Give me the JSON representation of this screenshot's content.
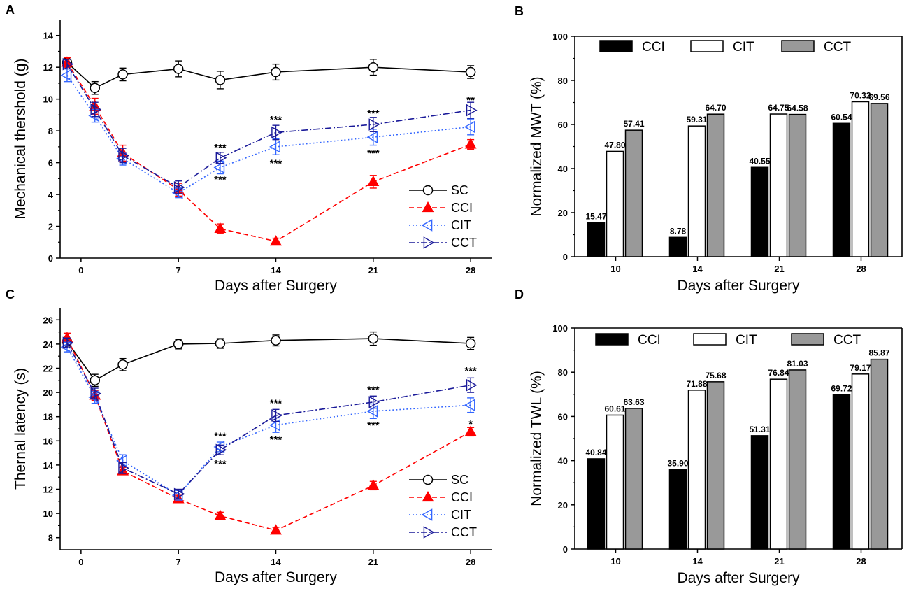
{
  "colors": {
    "SC": "#000000",
    "CCI": "#ff0000",
    "CIT": "#3366ff",
    "CCT": "#1a1a99",
    "bar_CCI": "#000000",
    "bar_CIT": "#ffffff",
    "bar_CCT": "#999999"
  },
  "chart_data": [
    {
      "panel": "A",
      "type": "line",
      "title": "",
      "xlabel": "Days after Surgery",
      "ylabel": "Mechanical thershold (g)",
      "xticks": [
        0,
        7,
        14,
        21,
        28
      ],
      "yticks": [
        0,
        2,
        4,
        6,
        8,
        10,
        12,
        14
      ],
      "xlim": [
        -1.5,
        29.5
      ],
      "ylim": [
        0,
        15
      ],
      "legend": "bottom-right",
      "x": [
        -1,
        1,
        3,
        7,
        10,
        14,
        21,
        28
      ],
      "series": [
        {
          "name": "SC",
          "style": "solid",
          "marker": "circle",
          "values": [
            12.3,
            10.7,
            11.55,
            11.9,
            11.2,
            11.7,
            12.0,
            11.7
          ],
          "err": [
            0.2,
            0.4,
            0.4,
            0.5,
            0.55,
            0.5,
            0.5,
            0.4
          ]
        },
        {
          "name": "CCI",
          "style": "dashed",
          "marker": "triangle-up",
          "values": [
            12.3,
            9.55,
            6.6,
            4.3,
            1.85,
            1.05,
            4.8,
            7.15
          ],
          "err": [
            0.3,
            0.5,
            0.5,
            0.4,
            0.3,
            0.2,
            0.4,
            0.3
          ]
        },
        {
          "name": "CIT",
          "style": "dotted",
          "marker": "triangle-left",
          "values": [
            11.5,
            8.95,
            6.25,
            4.1,
            5.7,
            7.0,
            7.6,
            8.25
          ],
          "err": [
            0.4,
            0.4,
            0.4,
            0.3,
            0.4,
            0.5,
            0.5,
            0.5
          ]
        },
        {
          "name": "CCT",
          "style": "dashdot",
          "marker": "triangle-right",
          "values": [
            12.2,
            9.35,
            6.45,
            4.45,
            6.3,
            7.9,
            8.4,
            9.3
          ],
          "err": [
            0.3,
            0.45,
            0.45,
            0.4,
            0.35,
            0.45,
            0.45,
            0.5
          ]
        }
      ],
      "annotations": [
        {
          "x": 10,
          "y": 6.95,
          "text": "***"
        },
        {
          "x": 10,
          "y": 4.95,
          "text": "***"
        },
        {
          "x": 14,
          "y": 8.7,
          "text": "***"
        },
        {
          "x": 14,
          "y": 5.95,
          "text": "***"
        },
        {
          "x": 21,
          "y": 9.1,
          "text": "***"
        },
        {
          "x": 21,
          "y": 6.6,
          "text": "***"
        },
        {
          "x": 28,
          "y": 9.95,
          "text": "**"
        }
      ]
    },
    {
      "panel": "B",
      "type": "bar",
      "title": "",
      "xlabel": "Days after Surgery",
      "ylabel": "Normalized MWT (%)",
      "categories": [
        "10",
        "14",
        "21",
        "28"
      ],
      "yticks": [
        0,
        20,
        40,
        60,
        80,
        100
      ],
      "ylim": [
        0,
        100
      ],
      "legend": "top",
      "series": [
        {
          "name": "CCI",
          "values": [
            15.47,
            8.78,
            40.55,
            60.54
          ],
          "labels": [
            "15.47",
            "8.78",
            "40.55",
            "60.54"
          ]
        },
        {
          "name": "CIT",
          "values": [
            47.8,
            59.31,
            64.75,
            70.32
          ],
          "labels": [
            "47.80",
            "59.31",
            "64.75",
            "70.32"
          ]
        },
        {
          "name": "CCT",
          "values": [
            57.41,
            64.7,
            64.58,
            69.56
          ],
          "labels": [
            "57.41",
            "64.70",
            "64.58",
            "69.56"
          ]
        }
      ]
    },
    {
      "panel": "C",
      "type": "line",
      "title": "",
      "xlabel": "Days after Surgery",
      "ylabel": "Thernal latency (s)",
      "xticks": [
        0,
        7,
        14,
        21,
        28
      ],
      "yticks": [
        8,
        10,
        12,
        14,
        16,
        18,
        20,
        22,
        24,
        26
      ],
      "xlim": [
        -1.5,
        29.5
      ],
      "ylim": [
        7,
        27
      ],
      "legend": "bottom-right",
      "x": [
        -1,
        1,
        3,
        7,
        10,
        14,
        21,
        28
      ],
      "series": [
        {
          "name": "SC",
          "style": "solid",
          "marker": "circle",
          "values": [
            24.2,
            21.0,
            22.3,
            24.0,
            24.05,
            24.3,
            24.45,
            24.05
          ],
          "err": [
            0.3,
            0.5,
            0.5,
            0.4,
            0.4,
            0.45,
            0.55,
            0.5
          ]
        },
        {
          "name": "CCI",
          "style": "dashed",
          "marker": "triangle-up",
          "values": [
            24.5,
            19.75,
            13.5,
            11.2,
            9.8,
            8.6,
            12.3,
            16.75
          ],
          "err": [
            0.4,
            0.4,
            0.3,
            0.3,
            0.3,
            0.25,
            0.35,
            0.35
          ]
        },
        {
          "name": "CIT",
          "style": "dotted",
          "marker": "triangle-left",
          "values": [
            23.75,
            19.6,
            14.35,
            11.5,
            15.5,
            17.3,
            18.45,
            18.95
          ],
          "err": [
            0.4,
            0.5,
            0.5,
            0.4,
            0.4,
            0.6,
            0.6,
            0.6
          ]
        },
        {
          "name": "CCT",
          "style": "dashdot",
          "marker": "triangle-right",
          "values": [
            24.1,
            19.9,
            13.75,
            11.6,
            15.25,
            18.1,
            19.2,
            20.6
          ],
          "err": [
            0.4,
            0.45,
            0.45,
            0.4,
            0.4,
            0.5,
            0.5,
            0.6
          ]
        }
      ],
      "annotations": [
        {
          "x": 10,
          "y": 16.4,
          "text": "***"
        },
        {
          "x": 10,
          "y": 14.1,
          "text": "***"
        },
        {
          "x": 14,
          "y": 19.1,
          "text": "***"
        },
        {
          "x": 14,
          "y": 16.1,
          "text": "***"
        },
        {
          "x": 21,
          "y": 20.2,
          "text": "***"
        },
        {
          "x": 21,
          "y": 17.3,
          "text": "***"
        },
        {
          "x": 28,
          "y": 21.8,
          "text": "***"
        },
        {
          "x": 28,
          "y": 17.4,
          "text": "*"
        }
      ]
    },
    {
      "panel": "D",
      "type": "bar",
      "title": "",
      "xlabel": "Days after Surgery",
      "ylabel": "Normalized TWL (%)",
      "categories": [
        "10",
        "14",
        "21",
        "28"
      ],
      "yticks": [
        0,
        20,
        40,
        60,
        80,
        100
      ],
      "ylim": [
        0,
        100
      ],
      "legend": "top",
      "series": [
        {
          "name": "CCI",
          "values": [
            40.84,
            35.9,
            51.31,
            69.72
          ],
          "labels": [
            "40.84",
            "35.90",
            "51.31",
            "69.72"
          ]
        },
        {
          "name": "CIT",
          "values": [
            60.61,
            71.88,
            76.84,
            79.17
          ],
          "labels": [
            "60.61",
            "71.88",
            "76.84",
            "79.17"
          ]
        },
        {
          "name": "CCT",
          "values": [
            63.63,
            75.68,
            81.03,
            85.87
          ],
          "labels": [
            "63.63",
            "75.68",
            "81.03",
            "85.87"
          ]
        }
      ]
    }
  ]
}
